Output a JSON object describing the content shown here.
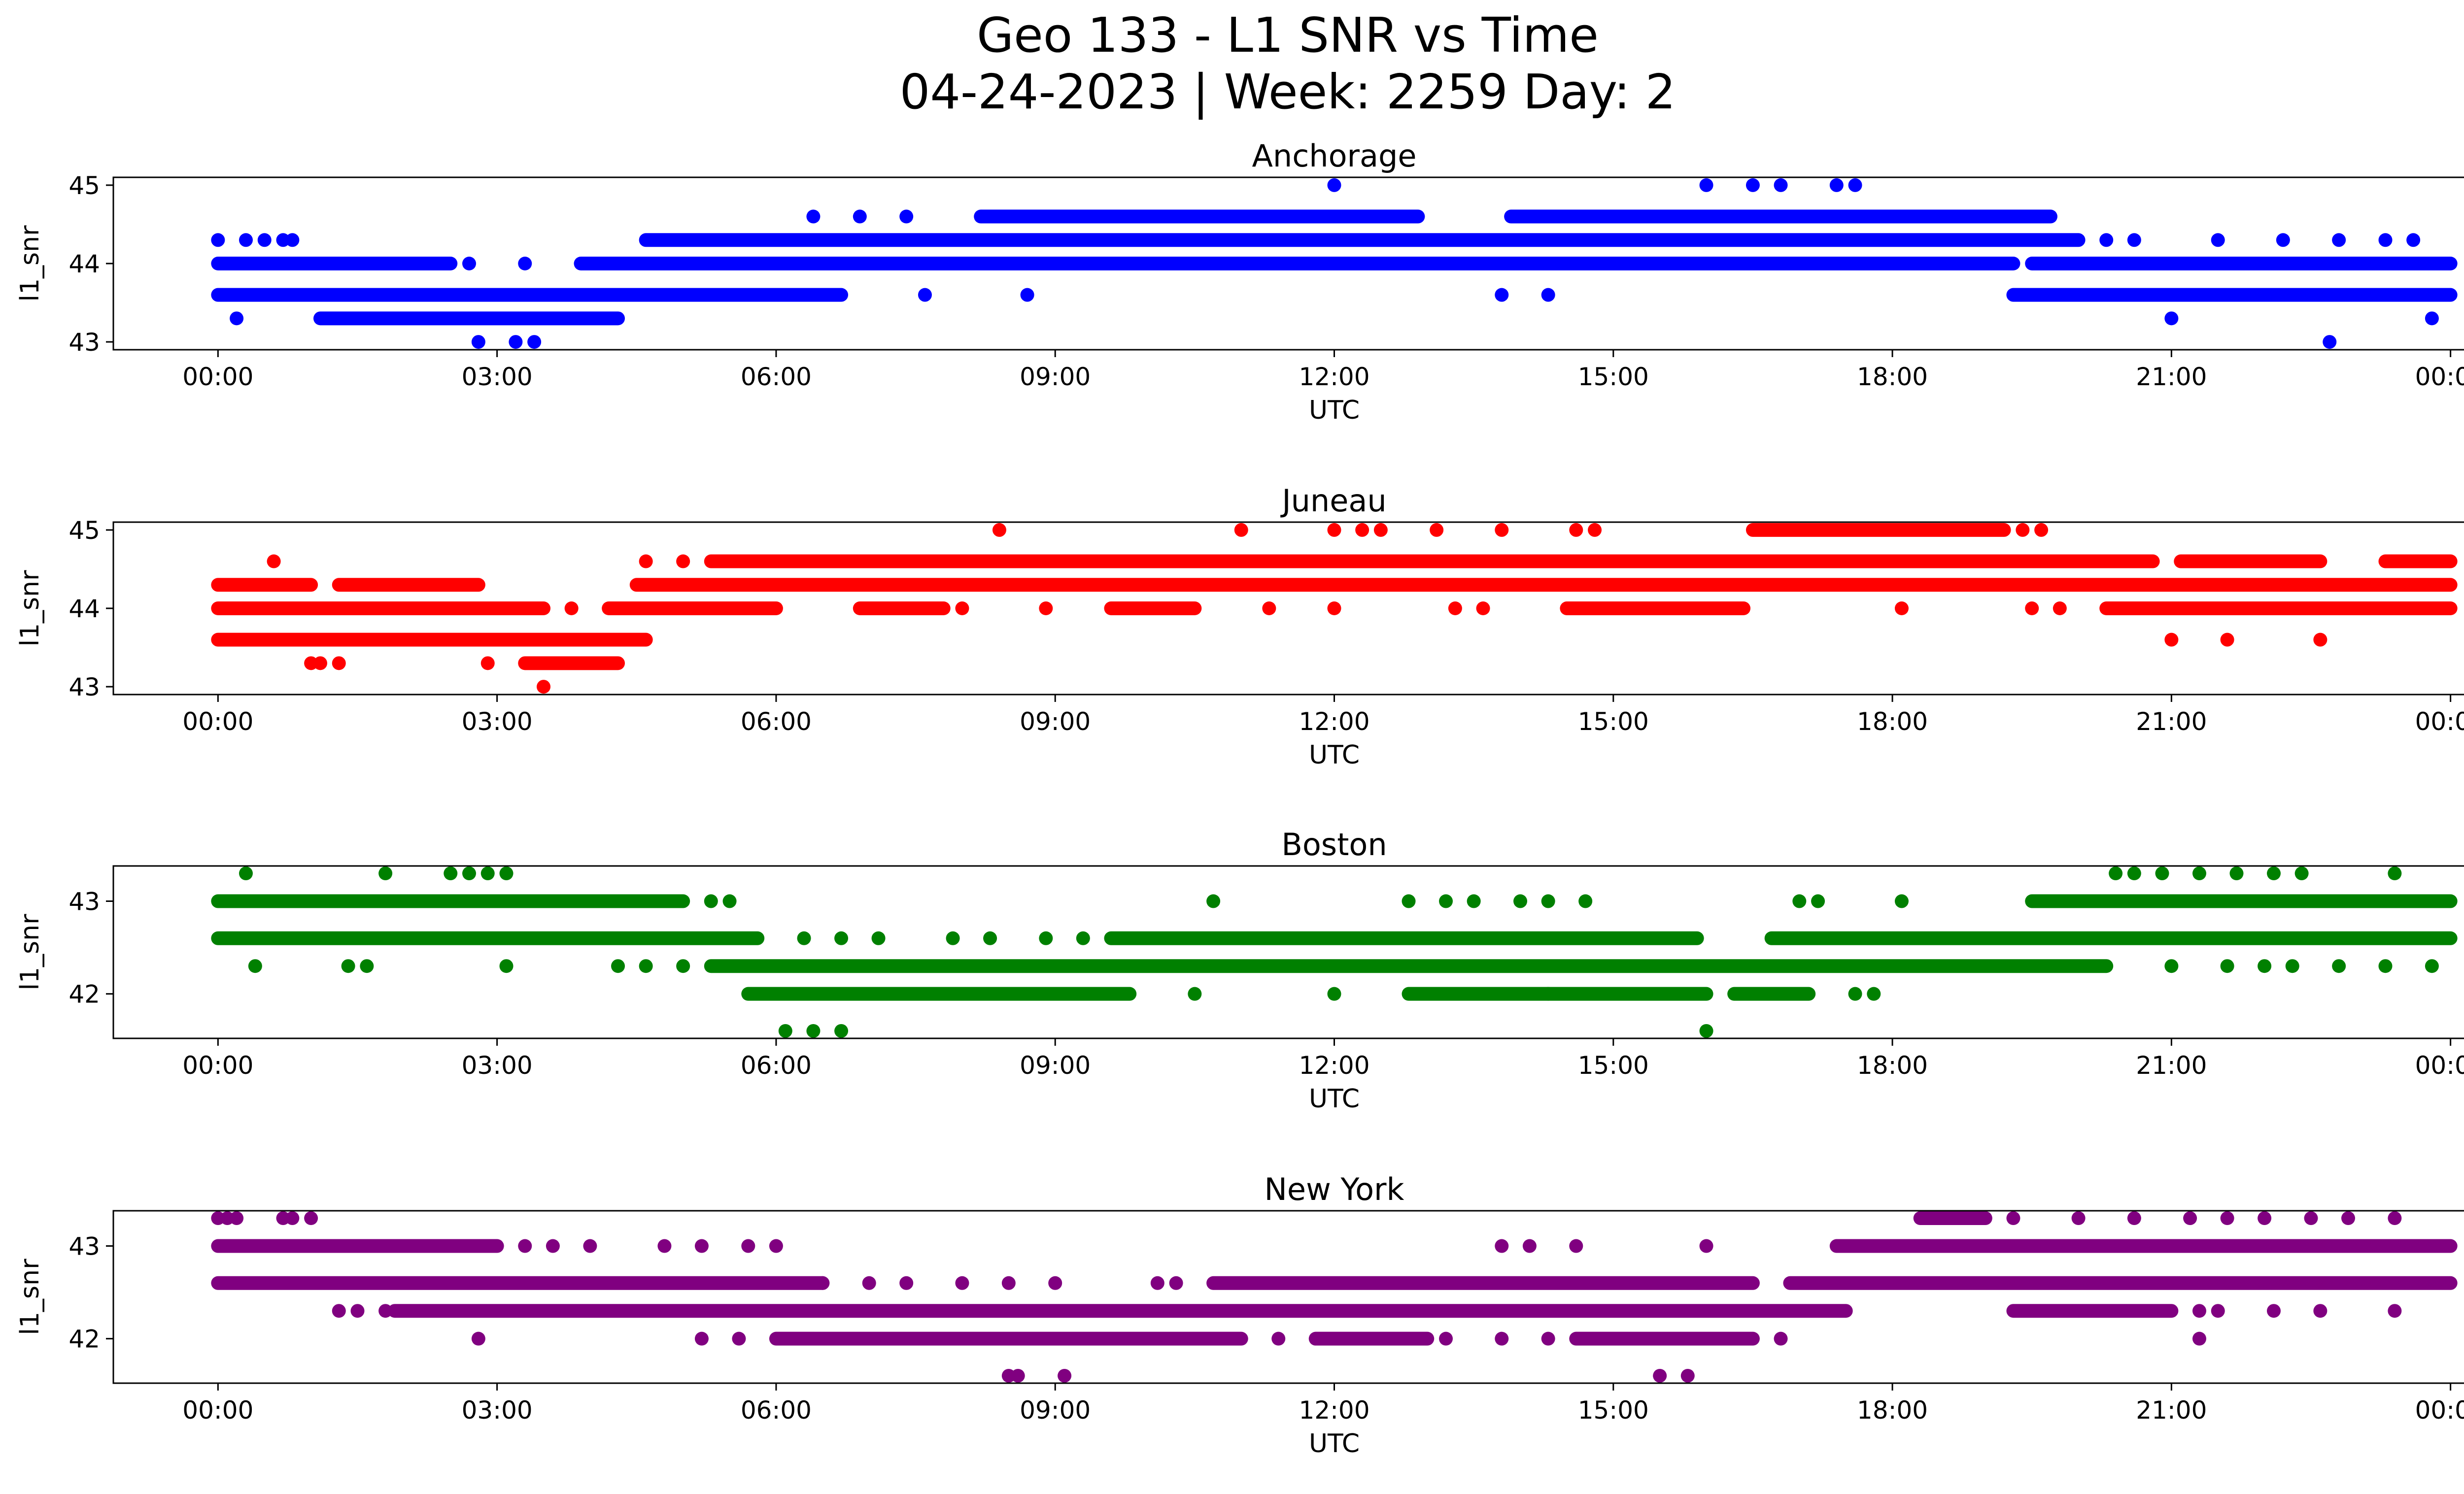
{
  "figure": {
    "title_line1": "Geo 133 - L1 SNR vs Time",
    "title_line2": "04-24-2023 | Week: 2259 Day: 2"
  },
  "chart_data": [
    {
      "type": "scatter",
      "title": "Anchorage",
      "xlabel": "UTC",
      "ylabel": "l1_snr",
      "color": "#0000ff",
      "x_unit": "hours UTC",
      "xlim": [
        -1.125,
        25.125
      ],
      "ylim": [
        42.9,
        45.1
      ],
      "xticks": [
        "00:00",
        "03:00",
        "06:00",
        "09:00",
        "12:00",
        "15:00",
        "18:00",
        "21:00",
        "00:00"
      ],
      "yticks": [
        43,
        44,
        45
      ],
      "grid": false,
      "bands": [
        {
          "y": 43.6,
          "from": 0.0,
          "to": 6.7
        },
        {
          "y": 43.6,
          "from": 19.3,
          "to": 24.0
        },
        {
          "y": 44.0,
          "from": 0.0,
          "to": 2.5
        },
        {
          "y": 44.0,
          "from": 3.9,
          "to": 19.3
        },
        {
          "y": 44.0,
          "from": 19.5,
          "to": 24.0
        },
        {
          "y": 44.3,
          "from": 4.6,
          "to": 20.0
        },
        {
          "y": 44.6,
          "from": 8.2,
          "to": 12.9
        },
        {
          "y": 44.6,
          "from": 13.9,
          "to": 19.7
        },
        {
          "y": 43.3,
          "from": 1.1,
          "to": 4.3
        }
      ],
      "points": [
        [
          0.2,
          43.3
        ],
        [
          21.0,
          43.3
        ],
        [
          23.8,
          43.3
        ],
        [
          2.8,
          43.0
        ],
        [
          3.2,
          43.0
        ],
        [
          3.4,
          43.0
        ],
        [
          22.7,
          43.0
        ],
        [
          0.0,
          44.3
        ],
        [
          0.3,
          44.3
        ],
        [
          0.5,
          44.3
        ],
        [
          0.7,
          44.3
        ],
        [
          0.8,
          44.3
        ],
        [
          2.7,
          44.0
        ],
        [
          3.3,
          44.0
        ],
        [
          7.6,
          43.6
        ],
        [
          8.7,
          43.6
        ],
        [
          13.8,
          43.6
        ],
        [
          14.3,
          43.6
        ],
        [
          6.4,
          44.6
        ],
        [
          6.9,
          44.6
        ],
        [
          7.4,
          44.6
        ],
        [
          12.0,
          45.0
        ],
        [
          16.0,
          45.0
        ],
        [
          16.5,
          45.0
        ],
        [
          16.8,
          45.0
        ],
        [
          17.4,
          45.0
        ],
        [
          17.6,
          45.0
        ],
        [
          20.3,
          44.3
        ],
        [
          20.6,
          44.3
        ],
        [
          21.5,
          44.3
        ],
        [
          22.2,
          44.3
        ],
        [
          22.8,
          44.3
        ],
        [
          23.3,
          44.3
        ],
        [
          23.6,
          44.3
        ]
      ]
    },
    {
      "type": "scatter",
      "title": "Juneau",
      "xlabel": "UTC",
      "ylabel": "l1_snr",
      "color": "#ff0000",
      "x_unit": "hours UTC",
      "xlim": [
        -1.125,
        25.125
      ],
      "ylim": [
        42.9,
        45.1
      ],
      "xticks": [
        "00:00",
        "03:00",
        "06:00",
        "09:00",
        "12:00",
        "15:00",
        "18:00",
        "21:00",
        "00:00"
      ],
      "yticks": [
        43,
        44,
        45
      ],
      "grid": false,
      "bands": [
        {
          "y": 44.3,
          "from": 0.0,
          "to": 1.0
        },
        {
          "y": 44.3,
          "from": 1.3,
          "to": 2.8
        },
        {
          "y": 44.3,
          "from": 4.5,
          "to": 24.0
        },
        {
          "y": 44.0,
          "from": 0.0,
          "to": 3.5
        },
        {
          "y": 44.0,
          "from": 4.2,
          "to": 6.0
        },
        {
          "y": 44.0,
          "from": 6.9,
          "to": 7.8
        },
        {
          "y": 44.0,
          "from": 9.6,
          "to": 10.5
        },
        {
          "y": 44.0,
          "from": 14.5,
          "to": 16.4
        },
        {
          "y": 44.0,
          "from": 20.3,
          "to": 24.0
        },
        {
          "y": 43.6,
          "from": 0.0,
          "to": 4.6
        },
        {
          "y": 44.6,
          "from": 5.3,
          "to": 20.8
        },
        {
          "y": 44.6,
          "from": 21.1,
          "to": 22.6
        },
        {
          "y": 44.6,
          "from": 23.3,
          "to": 24.0
        },
        {
          "y": 45.0,
          "from": 16.5,
          "to": 19.2
        },
        {
          "y": 43.3,
          "from": 3.3,
          "to": 4.3
        }
      ],
      "points": [
        [
          0.6,
          44.6
        ],
        [
          1.0,
          43.3
        ],
        [
          1.1,
          43.3
        ],
        [
          1.3,
          43.3
        ],
        [
          2.9,
          43.3
        ],
        [
          3.5,
          43.0
        ],
        [
          4.6,
          44.6
        ],
        [
          5.0,
          44.6
        ],
        [
          8.4,
          45.0
        ],
        [
          11.0,
          45.0
        ],
        [
          12.0,
          45.0
        ],
        [
          12.3,
          45.0
        ],
        [
          12.5,
          45.0
        ],
        [
          13.1,
          45.0
        ],
        [
          13.8,
          45.0
        ],
        [
          14.6,
          45.0
        ],
        [
          14.8,
          45.0
        ],
        [
          19.4,
          45.0
        ],
        [
          19.6,
          45.0
        ],
        [
          8.0,
          44.0
        ],
        [
          8.9,
          44.0
        ],
        [
          11.3,
          44.0
        ],
        [
          12.0,
          44.0
        ],
        [
          13.3,
          44.0
        ],
        [
          13.6,
          44.0
        ],
        [
          18.1,
          44.0
        ],
        [
          19.5,
          44.0
        ],
        [
          19.8,
          44.0
        ],
        [
          21.0,
          43.6
        ],
        [
          21.6,
          43.6
        ],
        [
          22.6,
          43.6
        ],
        [
          2.5,
          44.0
        ],
        [
          3.8,
          44.0
        ]
      ]
    },
    {
      "type": "scatter",
      "title": "Boston",
      "xlabel": "UTC",
      "ylabel": "l1_snr",
      "color": "#008000",
      "x_unit": "hours UTC",
      "xlim": [
        -1.125,
        25.125
      ],
      "ylim": [
        41.52,
        43.38
      ],
      "xticks": [
        "00:00",
        "03:00",
        "06:00",
        "09:00",
        "12:00",
        "15:00",
        "18:00",
        "21:00",
        "00:00"
      ],
      "yticks": [
        42,
        43
      ],
      "grid": false,
      "bands": [
        {
          "y": 43.0,
          "from": 0.0,
          "to": 5.0
        },
        {
          "y": 43.0,
          "from": 19.5,
          "to": 24.0
        },
        {
          "y": 42.6,
          "from": 0.0,
          "to": 5.8
        },
        {
          "y": 42.6,
          "from": 9.6,
          "to": 15.9
        },
        {
          "y": 42.6,
          "from": 16.7,
          "to": 24.0
        },
        {
          "y": 42.3,
          "from": 5.3,
          "to": 20.3
        },
        {
          "y": 42.0,
          "from": 5.7,
          "to": 9.8
        },
        {
          "y": 42.0,
          "from": 12.8,
          "to": 16.0
        },
        {
          "y": 42.0,
          "from": 16.3,
          "to": 17.1
        }
      ],
      "points": [
        [
          0.3,
          43.3
        ],
        [
          1.8,
          43.3
        ],
        [
          2.5,
          43.3
        ],
        [
          2.7,
          43.3
        ],
        [
          2.9,
          43.3
        ],
        [
          3.1,
          43.3
        ],
        [
          20.4,
          43.3
        ],
        [
          20.6,
          43.3
        ],
        [
          20.9,
          43.3
        ],
        [
          21.3,
          43.3
        ],
        [
          21.7,
          43.3
        ],
        [
          22.1,
          43.3
        ],
        [
          22.4,
          43.3
        ],
        [
          23.4,
          43.3
        ],
        [
          0.4,
          42.3
        ],
        [
          1.4,
          42.3
        ],
        [
          1.6,
          42.3
        ],
        [
          3.1,
          42.3
        ],
        [
          4.3,
          42.3
        ],
        [
          4.6,
          42.3
        ],
        [
          5.0,
          42.3
        ],
        [
          21.0,
          42.3
        ],
        [
          21.6,
          42.3
        ],
        [
          22.0,
          42.3
        ],
        [
          22.3,
          42.3
        ],
        [
          22.8,
          42.3
        ],
        [
          23.3,
          42.3
        ],
        [
          23.8,
          42.3
        ],
        [
          5.3,
          43.0
        ],
        [
          5.5,
          43.0
        ],
        [
          10.7,
          43.0
        ],
        [
          12.8,
          43.0
        ],
        [
          13.2,
          43.0
        ],
        [
          13.5,
          43.0
        ],
        [
          14.0,
          43.0
        ],
        [
          14.3,
          43.0
        ],
        [
          14.7,
          43.0
        ],
        [
          17.0,
          43.0
        ],
        [
          17.2,
          43.0
        ],
        [
          18.1,
          43.0
        ],
        [
          6.3,
          42.6
        ],
        [
          6.7,
          42.6
        ],
        [
          7.1,
          42.6
        ],
        [
          7.9,
          42.6
        ],
        [
          8.3,
          42.6
        ],
        [
          8.9,
          42.6
        ],
        [
          9.3,
          42.6
        ],
        [
          10.5,
          42.0
        ],
        [
          12.0,
          42.0
        ],
        [
          14.3,
          42.0
        ],
        [
          17.6,
          42.0
        ],
        [
          17.8,
          42.0
        ],
        [
          6.1,
          41.6
        ],
        [
          6.4,
          41.6
        ],
        [
          6.7,
          41.6
        ],
        [
          16.0,
          41.6
        ]
      ]
    },
    {
      "type": "scatter",
      "title": "New York",
      "xlabel": "UTC",
      "ylabel": "l1_snr",
      "color": "#800080",
      "x_unit": "hours UTC",
      "xlim": [
        -1.125,
        25.125
      ],
      "ylim": [
        41.52,
        43.38
      ],
      "xticks": [
        "00:00",
        "03:00",
        "06:00",
        "09:00",
        "12:00",
        "15:00",
        "18:00",
        "21:00",
        "00:00"
      ],
      "yticks": [
        42,
        43
      ],
      "grid": false,
      "bands": [
        {
          "y": 43.0,
          "from": 0.0,
          "to": 3.0
        },
        {
          "y": 43.0,
          "from": 17.4,
          "to": 24.0
        },
        {
          "y": 42.6,
          "from": 0.0,
          "to": 6.5
        },
        {
          "y": 42.6,
          "from": 10.7,
          "to": 16.5
        },
        {
          "y": 42.6,
          "from": 16.9,
          "to": 24.0
        },
        {
          "y": 42.3,
          "from": 1.9,
          "to": 17.5
        },
        {
          "y": 42.3,
          "from": 19.3,
          "to": 21.0
        },
        {
          "y": 42.0,
          "from": 6.0,
          "to": 11.0
        },
        {
          "y": 42.0,
          "from": 11.8,
          "to": 13.0
        },
        {
          "y": 42.0,
          "from": 14.6,
          "to": 16.5
        },
        {
          "y": 43.3,
          "from": 18.3,
          "to": 19.0
        }
      ],
      "points": [
        [
          0.0,
          43.3
        ],
        [
          0.1,
          43.3
        ],
        [
          0.2,
          43.3
        ],
        [
          0.7,
          43.3
        ],
        [
          0.8,
          43.3
        ],
        [
          1.0,
          43.3
        ],
        [
          19.3,
          43.3
        ],
        [
          20.0,
          43.3
        ],
        [
          20.6,
          43.3
        ],
        [
          21.2,
          43.3
        ],
        [
          21.6,
          43.3
        ],
        [
          22.0,
          43.3
        ],
        [
          22.5,
          43.3
        ],
        [
          22.9,
          43.3
        ],
        [
          23.4,
          43.3
        ],
        [
          3.3,
          43.0
        ],
        [
          3.6,
          43.0
        ],
        [
          4.0,
          43.0
        ],
        [
          4.8,
          43.0
        ],
        [
          5.2,
          43.0
        ],
        [
          5.7,
          43.0
        ],
        [
          6.0,
          43.0
        ],
        [
          13.8,
          43.0
        ],
        [
          14.1,
          43.0
        ],
        [
          14.6,
          43.0
        ],
        [
          1.3,
          42.3
        ],
        [
          1.5,
          42.3
        ],
        [
          1.8,
          42.3
        ],
        [
          21.3,
          42.3
        ],
        [
          21.5,
          42.3
        ],
        [
          22.1,
          42.3
        ],
        [
          22.6,
          42.3
        ],
        [
          23.4,
          42.3
        ],
        [
          2.8,
          42.0
        ],
        [
          5.2,
          42.0
        ],
        [
          5.6,
          42.0
        ],
        [
          11.4,
          42.0
        ],
        [
          13.2,
          42.0
        ],
        [
          13.8,
          42.0
        ],
        [
          14.3,
          42.0
        ],
        [
          16.8,
          42.0
        ],
        [
          21.3,
          42.0
        ],
        [
          6.5,
          42.6
        ],
        [
          7.0,
          42.6
        ],
        [
          7.4,
          42.6
        ],
        [
          8.0,
          42.6
        ],
        [
          8.5,
          42.6
        ],
        [
          9.0,
          42.6
        ],
        [
          10.1,
          42.6
        ],
        [
          10.3,
          42.6
        ],
        [
          8.5,
          41.6
        ],
        [
          8.6,
          41.6
        ],
        [
          9.1,
          41.6
        ],
        [
          15.5,
          41.6
        ],
        [
          15.8,
          41.6
        ],
        [
          16.0,
          43.0
        ],
        [
          18.7,
          43.0
        ],
        [
          19.0,
          43.0
        ]
      ]
    }
  ]
}
